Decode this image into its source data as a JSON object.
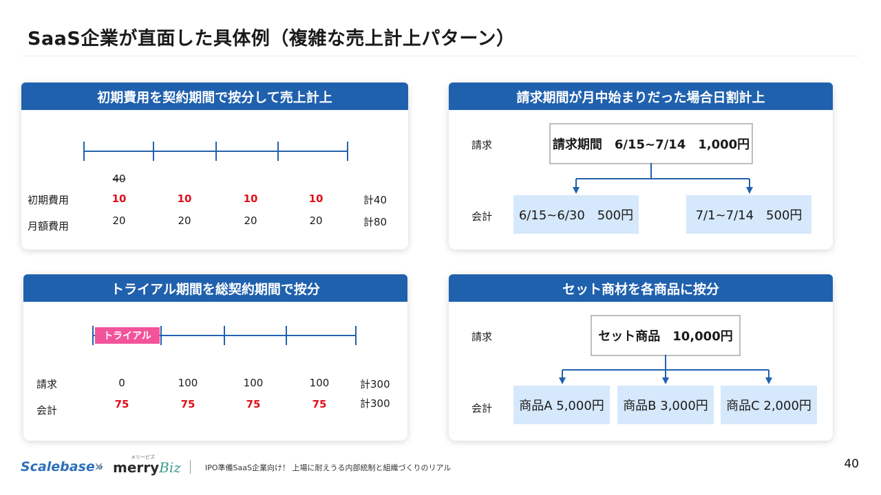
{
  "title": "SaaS企業が直面した具体例（複雑な売上計上パターン）",
  "panel1": {
    "header": "初期費用を契約期間で按分して売上計上",
    "strike_value": "40",
    "rows": [
      {
        "label": "初期費用",
        "values": [
          "10",
          "10",
          "10",
          "10"
        ],
        "total": "計40"
      },
      {
        "label": "月額費用",
        "values": [
          "20",
          "20",
          "20",
          "20"
        ],
        "total": "計80"
      }
    ]
  },
  "panel2": {
    "header": "請求期間が月中始まりだった場合日割計上",
    "label_billing": "請求",
    "label_accounting": "会計",
    "billing_box": "請求期間　6/15~7/14　1,000円",
    "split": [
      "6/15~6/30　500円",
      "7/1~7/14　500円"
    ]
  },
  "panel3": {
    "header": "トライアル期間を総契約期間で按分",
    "trial_label": "トライアル",
    "rows": [
      {
        "label": "請求",
        "values": [
          "0",
          "100",
          "100",
          "100"
        ],
        "total": "計300"
      },
      {
        "label": "会計",
        "values": [
          "75",
          "75",
          "75",
          "75"
        ],
        "total": "計300"
      }
    ]
  },
  "panel4": {
    "header": "セット商材を各商品に按分",
    "label_billing": "請求",
    "label_accounting": "会計",
    "billing_box": "セット商品　10,000円",
    "split": [
      "商品A 5,000円",
      "商品B 3,000円",
      "商品C 2,000円"
    ]
  },
  "footer": {
    "logo1": "Scalebase»",
    "times": "×",
    "logo2_a": "merry",
    "logo2_b": "Biz",
    "logo2_ruby": "メリービズ",
    "text": "IPO準備SaaS企業向け！ 上場に耐えうる内部統制と組織づくりのリアル",
    "page": "40"
  },
  "colors": {
    "header_blue": "#2061ae",
    "accent_red": "#e0101a",
    "box_blue": "#d6e8fb",
    "trial_pink": "#f2539a",
    "line_blue": "#2061ae"
  }
}
